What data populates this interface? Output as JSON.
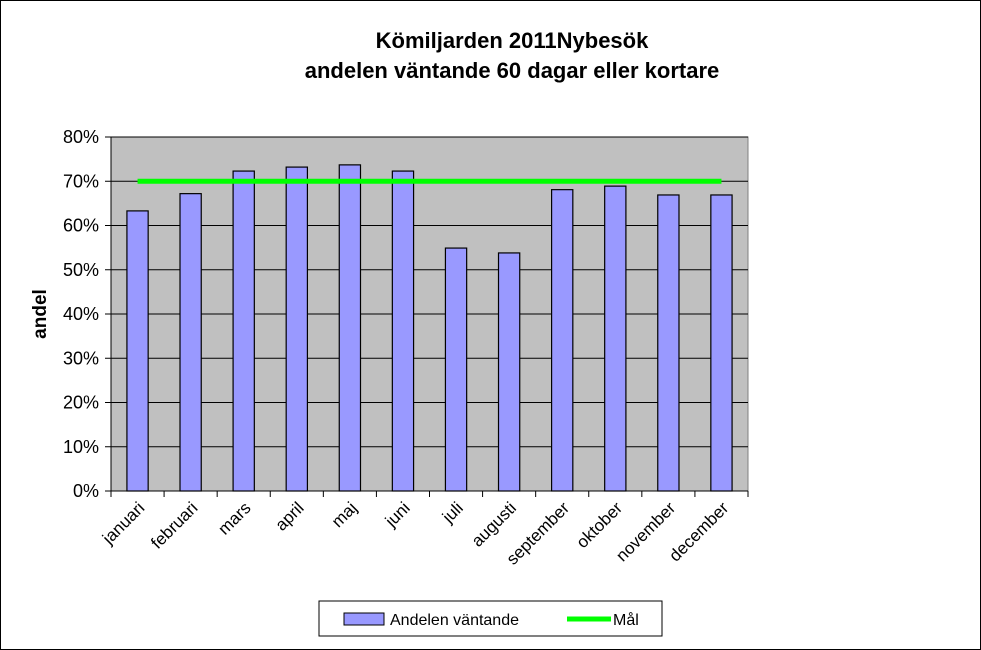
{
  "chart_data": {
    "type": "bar",
    "title_line1": "Kömiljarden 2011Nybesök",
    "title_line2": "andelen väntande 60 dagar eller kortare",
    "ylabel": "andel",
    "xlabel": "",
    "ylim": [
      0,
      0.8
    ],
    "y_ticks": [
      "0%",
      "10%",
      "20%",
      "30%",
      "40%",
      "50%",
      "60%",
      "70%",
      "80%"
    ],
    "grid": true,
    "legend_position": "bottom",
    "categories": [
      "januari",
      "februari",
      "mars",
      "april",
      "maj",
      "juni",
      "juli",
      "augusti",
      "september",
      "oktober",
      "november",
      "december"
    ],
    "series": [
      {
        "name": "Andelen väntande",
        "type": "bar",
        "color": "#9999ff",
        "values": [
          0.633,
          0.672,
          0.723,
          0.732,
          0.737,
          0.723,
          0.549,
          0.538,
          0.681,
          0.689,
          0.669,
          0.669
        ]
      },
      {
        "name": "Mål",
        "type": "line",
        "color": "#00ff00",
        "values": [
          0.7,
          0.7,
          0.7,
          0.7,
          0.7,
          0.7,
          0.7,
          0.7,
          0.7,
          0.7,
          0.7,
          0.7
        ]
      }
    ],
    "plot_background": "#c0c0c0"
  }
}
